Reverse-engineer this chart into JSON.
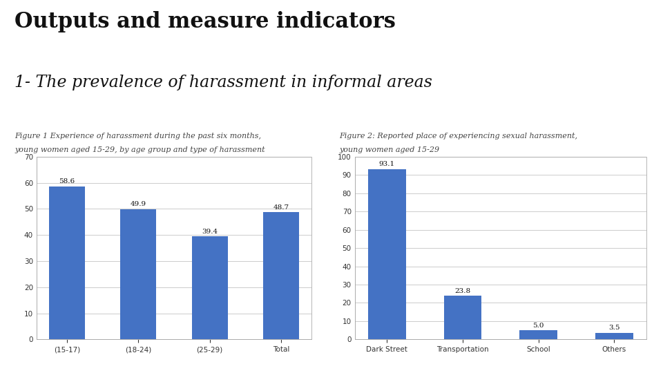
{
  "title": "Outputs and measure indicators",
  "subtitle": "1- The prevalence of harassment in informal areas",
  "fig1_caption_line1": "Figure 1 Experience of harassment during the past six months,",
  "fig1_caption_line2": "young women aged 15-29, by age group and type of harassment",
  "fig2_caption_line1": "Figure 2: Reported place of experiencing sexual harassment,",
  "fig2_caption_line2": "young women aged 15-29",
  "fig1_categories": [
    "(15-17)",
    "(18-24)",
    "(25-29)",
    "Total"
  ],
  "fig1_values": [
    58.6,
    49.9,
    39.4,
    48.7
  ],
  "fig1_ylim": [
    0,
    70
  ],
  "fig1_yticks": [
    0,
    10,
    20,
    30,
    40,
    50,
    60,
    70
  ],
  "fig2_categories": [
    "Dark Street",
    "Transportation",
    "School",
    "Others"
  ],
  "fig2_values": [
    93.1,
    23.8,
    5.0,
    3.5
  ],
  "fig2_ylim": [
    0,
    100
  ],
  "fig2_yticks": [
    0,
    10,
    20,
    30,
    40,
    50,
    60,
    70,
    80,
    90,
    100
  ],
  "bar_color": "#4472C4",
  "background_color": "#ffffff",
  "title_fontsize": 22,
  "subtitle_fontsize": 17,
  "caption_fontsize": 8,
  "value_label_fontsize": 7.5,
  "tick_fontsize": 7.5
}
